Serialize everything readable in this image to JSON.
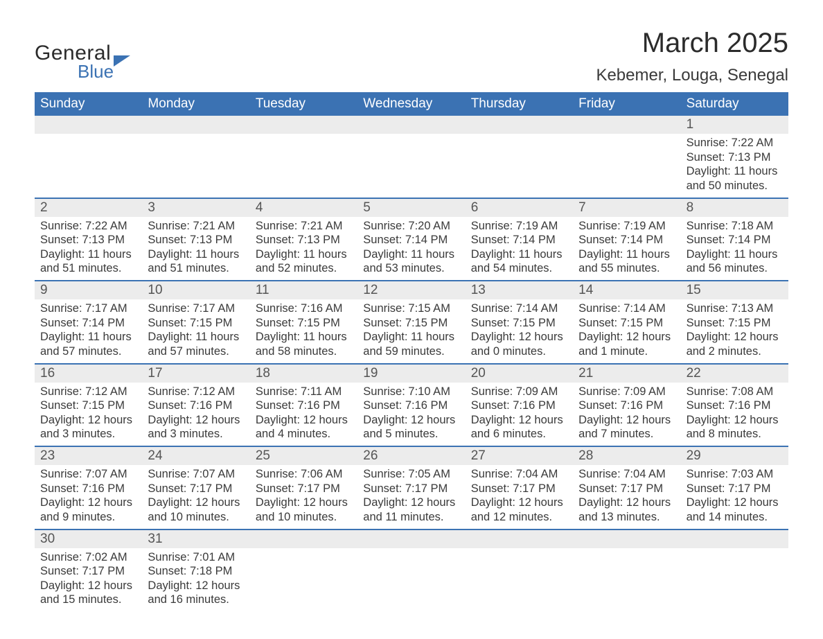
{
  "logo": {
    "text1": "General",
    "text2": "Blue"
  },
  "title": "March 2025",
  "location": "Kebemer, Louga, Senegal",
  "colors": {
    "header_bg": "#3b72b3",
    "header_text": "#ffffff",
    "daynum_bg": "#ececec",
    "divider": "#3b72b3",
    "body_text": "#3a3a3a",
    "page_bg": "#ffffff"
  },
  "typography": {
    "title_fontsize": 40,
    "location_fontsize": 24,
    "dow_fontsize": 19,
    "daynum_fontsize": 19,
    "details_fontsize": 16.5,
    "font_family": "Arial"
  },
  "days_of_week": [
    "Sunday",
    "Monday",
    "Tuesday",
    "Wednesday",
    "Thursday",
    "Friday",
    "Saturday"
  ],
  "weeks": [
    [
      null,
      null,
      null,
      null,
      null,
      null,
      {
        "n": "1",
        "sunrise": "7:22 AM",
        "sunset": "7:13 PM",
        "daylight": "11 hours and 50 minutes."
      }
    ],
    [
      {
        "n": "2",
        "sunrise": "7:22 AM",
        "sunset": "7:13 PM",
        "daylight": "11 hours and 51 minutes."
      },
      {
        "n": "3",
        "sunrise": "7:21 AM",
        "sunset": "7:13 PM",
        "daylight": "11 hours and 51 minutes."
      },
      {
        "n": "4",
        "sunrise": "7:21 AM",
        "sunset": "7:13 PM",
        "daylight": "11 hours and 52 minutes."
      },
      {
        "n": "5",
        "sunrise": "7:20 AM",
        "sunset": "7:14 PM",
        "daylight": "11 hours and 53 minutes."
      },
      {
        "n": "6",
        "sunrise": "7:19 AM",
        "sunset": "7:14 PM",
        "daylight": "11 hours and 54 minutes."
      },
      {
        "n": "7",
        "sunrise": "7:19 AM",
        "sunset": "7:14 PM",
        "daylight": "11 hours and 55 minutes."
      },
      {
        "n": "8",
        "sunrise": "7:18 AM",
        "sunset": "7:14 PM",
        "daylight": "11 hours and 56 minutes."
      }
    ],
    [
      {
        "n": "9",
        "sunrise": "7:17 AM",
        "sunset": "7:14 PM",
        "daylight": "11 hours and 57 minutes."
      },
      {
        "n": "10",
        "sunrise": "7:17 AM",
        "sunset": "7:15 PM",
        "daylight": "11 hours and 57 minutes."
      },
      {
        "n": "11",
        "sunrise": "7:16 AM",
        "sunset": "7:15 PM",
        "daylight": "11 hours and 58 minutes."
      },
      {
        "n": "12",
        "sunrise": "7:15 AM",
        "sunset": "7:15 PM",
        "daylight": "11 hours and 59 minutes."
      },
      {
        "n": "13",
        "sunrise": "7:14 AM",
        "sunset": "7:15 PM",
        "daylight": "12 hours and 0 minutes."
      },
      {
        "n": "14",
        "sunrise": "7:14 AM",
        "sunset": "7:15 PM",
        "daylight": "12 hours and 1 minute."
      },
      {
        "n": "15",
        "sunrise": "7:13 AM",
        "sunset": "7:15 PM",
        "daylight": "12 hours and 2 minutes."
      }
    ],
    [
      {
        "n": "16",
        "sunrise": "7:12 AM",
        "sunset": "7:15 PM",
        "daylight": "12 hours and 3 minutes."
      },
      {
        "n": "17",
        "sunrise": "7:12 AM",
        "sunset": "7:16 PM",
        "daylight": "12 hours and 3 minutes."
      },
      {
        "n": "18",
        "sunrise": "7:11 AM",
        "sunset": "7:16 PM",
        "daylight": "12 hours and 4 minutes."
      },
      {
        "n": "19",
        "sunrise": "7:10 AM",
        "sunset": "7:16 PM",
        "daylight": "12 hours and 5 minutes."
      },
      {
        "n": "20",
        "sunrise": "7:09 AM",
        "sunset": "7:16 PM",
        "daylight": "12 hours and 6 minutes."
      },
      {
        "n": "21",
        "sunrise": "7:09 AM",
        "sunset": "7:16 PM",
        "daylight": "12 hours and 7 minutes."
      },
      {
        "n": "22",
        "sunrise": "7:08 AM",
        "sunset": "7:16 PM",
        "daylight": "12 hours and 8 minutes."
      }
    ],
    [
      {
        "n": "23",
        "sunrise": "7:07 AM",
        "sunset": "7:16 PM",
        "daylight": "12 hours and 9 minutes."
      },
      {
        "n": "24",
        "sunrise": "7:07 AM",
        "sunset": "7:17 PM",
        "daylight": "12 hours and 10 minutes."
      },
      {
        "n": "25",
        "sunrise": "7:06 AM",
        "sunset": "7:17 PM",
        "daylight": "12 hours and 10 minutes."
      },
      {
        "n": "26",
        "sunrise": "7:05 AM",
        "sunset": "7:17 PM",
        "daylight": "12 hours and 11 minutes."
      },
      {
        "n": "27",
        "sunrise": "7:04 AM",
        "sunset": "7:17 PM",
        "daylight": "12 hours and 12 minutes."
      },
      {
        "n": "28",
        "sunrise": "7:04 AM",
        "sunset": "7:17 PM",
        "daylight": "12 hours and 13 minutes."
      },
      {
        "n": "29",
        "sunrise": "7:03 AM",
        "sunset": "7:17 PM",
        "daylight": "12 hours and 14 minutes."
      }
    ],
    [
      {
        "n": "30",
        "sunrise": "7:02 AM",
        "sunset": "7:17 PM",
        "daylight": "12 hours and 15 minutes."
      },
      {
        "n": "31",
        "sunrise": "7:01 AM",
        "sunset": "7:18 PM",
        "daylight": "12 hours and 16 minutes."
      },
      null,
      null,
      null,
      null,
      null
    ]
  ],
  "labels": {
    "sunrise": "Sunrise:",
    "sunset": "Sunset:",
    "daylight": "Daylight:"
  }
}
